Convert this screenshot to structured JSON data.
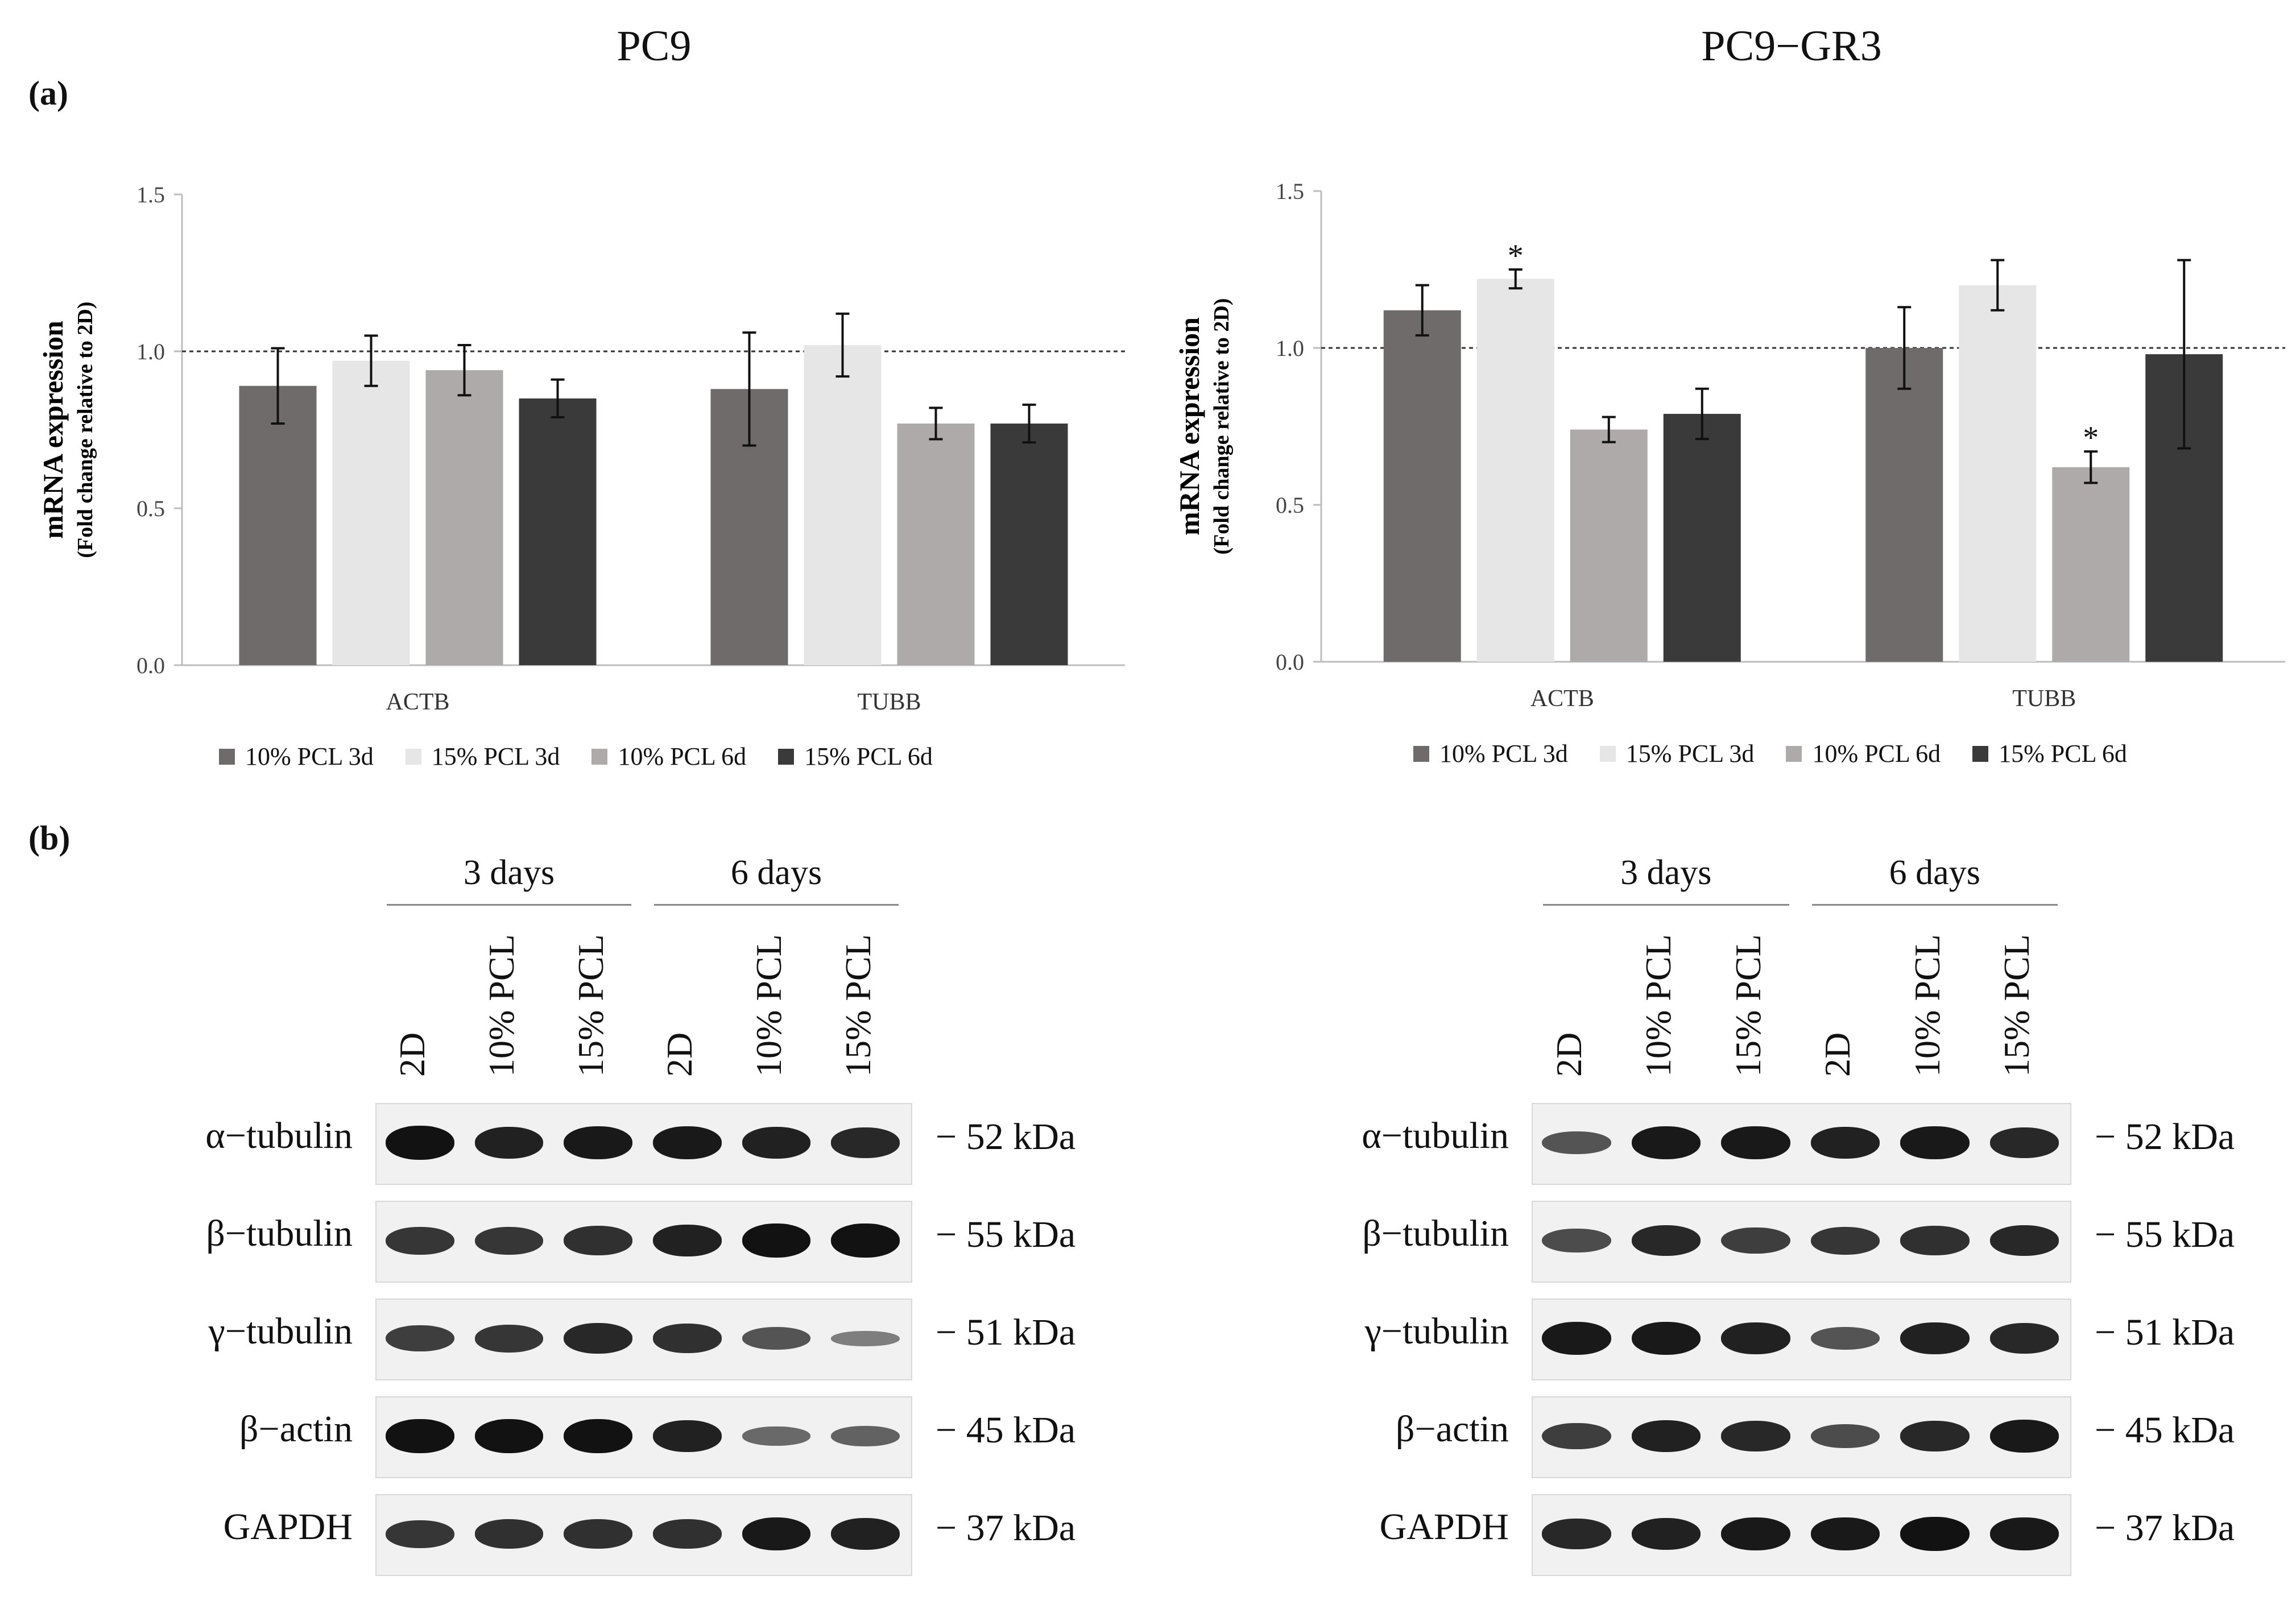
{
  "panel_a_label": "(a)",
  "panel_b_label": "(b)",
  "colors": {
    "10% PCL 3d": "#6f6b6a",
    "15% PCL 3d": "#e6e6e6",
    "10% PCL 6d": "#aeaaa9",
    "15% PCL 6d": "#3a3a3a"
  },
  "chart_data": [
    {
      "type": "bar",
      "title": "PC9",
      "ylabel": "mRNA expression",
      "ylabel2": "(Fold change relative to 2D)",
      "xlabel": "",
      "ylim": [
        0,
        1.5
      ],
      "yticks": [
        "0.0",
        "0.5",
        "1.0",
        "1.5"
      ],
      "reference_line": 1.0,
      "categories": [
        "ACTB",
        "TUBB"
      ],
      "series": [
        {
          "name": "10% PCL 3d",
          "values": [
            0.89,
            0.88
          ],
          "errors": [
            0.12,
            0.18
          ],
          "sig": [
            "",
            ""
          ]
        },
        {
          "name": "15% PCL 3d",
          "values": [
            0.97,
            1.02
          ],
          "errors": [
            0.08,
            0.1
          ],
          "sig": [
            "",
            ""
          ]
        },
        {
          "name": "10% PCL 6d",
          "values": [
            0.94,
            0.77
          ],
          "errors": [
            0.08,
            0.05
          ],
          "sig": [
            "",
            ""
          ]
        },
        {
          "name": "15% PCL 6d",
          "values": [
            0.85,
            0.77
          ],
          "errors": [
            0.06,
            0.06
          ],
          "sig": [
            "",
            ""
          ]
        }
      ],
      "legend": "bottom"
    },
    {
      "type": "bar",
      "title": "PC9−GR3",
      "ylabel": "mRNA expression",
      "ylabel2": "(Fold change relative to 2D)",
      "xlabel": "",
      "ylim": [
        0,
        1.5
      ],
      "yticks": [
        "0.0",
        "0.5",
        "1.0",
        "1.5"
      ],
      "reference_line": 1.0,
      "categories": [
        "ACTB",
        "TUBB"
      ],
      "series": [
        {
          "name": "10% PCL 3d",
          "values": [
            1.12,
            1.0
          ],
          "errors": [
            0.08,
            0.13
          ],
          "sig": [
            "",
            ""
          ]
        },
        {
          "name": "15% PCL 3d",
          "values": [
            1.22,
            1.2
          ],
          "errors": [
            0.03,
            0.08
          ],
          "sig": [
            "*",
            ""
          ]
        },
        {
          "name": "10% PCL 6d",
          "values": [
            0.74,
            0.62
          ],
          "errors": [
            0.04,
            0.05
          ],
          "sig": [
            "",
            "*"
          ]
        },
        {
          "name": "15% PCL 6d",
          "values": [
            0.79,
            0.98
          ],
          "errors": [
            0.08,
            0.3
          ],
          "sig": [
            "",
            ""
          ]
        }
      ],
      "legend": "bottom"
    }
  ],
  "blots": [
    {
      "groups": [
        "3 days",
        "6 days"
      ],
      "lanes": [
        "2D",
        "10% PCL",
        "15% PCL",
        "2D",
        "10% PCL",
        "15% PCL"
      ],
      "rows": [
        {
          "protein": "α−tubulin",
          "mw": "− 52 kDa",
          "intensity": [
            1.0,
            0.9,
            0.95,
            0.95,
            0.9,
            0.85
          ]
        },
        {
          "protein": "β−tubulin",
          "mw": "− 55 kDa",
          "intensity": [
            0.75,
            0.75,
            0.8,
            0.9,
            1.0,
            1.0
          ]
        },
        {
          "protein": "γ−tubulin",
          "mw": "− 51 kDa",
          "intensity": [
            0.7,
            0.75,
            0.85,
            0.8,
            0.55,
            0.25
          ]
        },
        {
          "protein": "β−actin",
          "mw": "− 45 kDa",
          "intensity": [
            1.0,
            1.0,
            1.0,
            0.9,
            0.4,
            0.45
          ]
        },
        {
          "protein": "GAPDH",
          "mw": "− 37 kDa",
          "intensity": [
            0.75,
            0.8,
            0.8,
            0.8,
            0.95,
            0.9
          ]
        }
      ]
    },
    {
      "groups": [
        "3 days",
        "6 days"
      ],
      "lanes": [
        "2D",
        "10% PCL",
        "15% PCL",
        "2D",
        "10% PCL",
        "15% PCL"
      ],
      "rows": [
        {
          "protein": "α−tubulin",
          "mw": "− 52 kDa",
          "intensity": [
            0.55,
            0.95,
            0.95,
            0.9,
            0.95,
            0.85
          ]
        },
        {
          "protein": "β−tubulin",
          "mw": "− 55 kDa",
          "intensity": [
            0.6,
            0.85,
            0.7,
            0.75,
            0.8,
            0.85
          ]
        },
        {
          "protein": "γ−tubulin",
          "mw": "− 51 kDa",
          "intensity": [
            0.95,
            0.95,
            0.9,
            0.55,
            0.9,
            0.85
          ]
        },
        {
          "protein": "β−actin",
          "mw": "− 45 kDa",
          "intensity": [
            0.7,
            0.9,
            0.85,
            0.6,
            0.85,
            0.95
          ]
        },
        {
          "protein": "GAPDH",
          "mw": "− 37 kDa",
          "intensity": [
            0.85,
            0.9,
            0.95,
            0.95,
            1.0,
            0.95
          ]
        }
      ]
    }
  ]
}
